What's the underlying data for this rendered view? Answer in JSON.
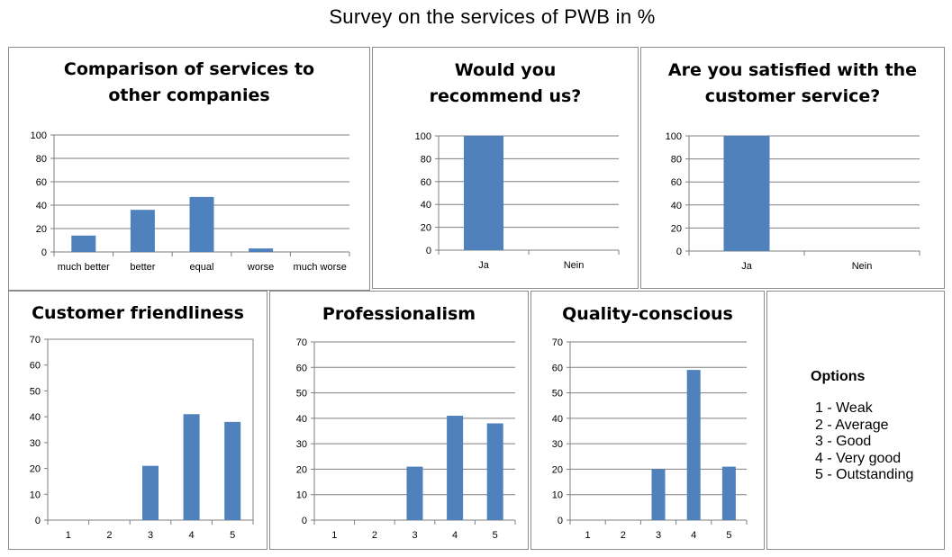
{
  "title": "Survey on the services of PWB in %",
  "chart_data": [
    {
      "type": "bar",
      "title": "Comparison of services to other companies",
      "categories": [
        "much better",
        "better",
        "equal",
        "worse",
        "much worse"
      ],
      "values": [
        14,
        36,
        47,
        3,
        0
      ],
      "ylim": [
        0,
        100
      ],
      "yticks": [
        0,
        20,
        40,
        60,
        80,
        100
      ],
      "grid": true,
      "color": "#4f81bd"
    },
    {
      "type": "bar",
      "title": "Would you recommend us?",
      "categories": [
        "Ja",
        "Nein"
      ],
      "values": [
        100,
        0
      ],
      "ylim": [
        0,
        100
      ],
      "yticks": [
        0,
        20,
        40,
        60,
        80,
        100
      ],
      "grid": true,
      "color": "#4f81bd"
    },
    {
      "type": "bar",
      "title": "Are you satisfied with the customer service?",
      "categories": [
        "Ja",
        "Nein"
      ],
      "values": [
        100,
        0
      ],
      "ylim": [
        0,
        100
      ],
      "yticks": [
        0,
        20,
        40,
        60,
        80,
        100
      ],
      "grid": true,
      "color": "#4f81bd"
    },
    {
      "type": "bar",
      "title": "Customer friendliness",
      "categories": [
        "1",
        "2",
        "3",
        "4",
        "5"
      ],
      "values": [
        0,
        0,
        21,
        41,
        38
      ],
      "ylim": [
        0,
        70
      ],
      "yticks": [
        0,
        10,
        20,
        30,
        40,
        50,
        60,
        70
      ],
      "grid": false,
      "color": "#4f81bd"
    },
    {
      "type": "bar",
      "title": "Professionalism",
      "categories": [
        "1",
        "2",
        "3",
        "4",
        "5"
      ],
      "values": [
        0,
        0,
        21,
        41,
        38
      ],
      "ylim": [
        0,
        70
      ],
      "yticks": [
        0,
        10,
        20,
        30,
        40,
        50,
        60,
        70
      ],
      "grid": true,
      "color": "#4f81bd"
    },
    {
      "type": "bar",
      "title": "Quality-conscious",
      "categories": [
        "1",
        "2",
        "3",
        "4",
        "5"
      ],
      "values": [
        0,
        0,
        20,
        59,
        21
      ],
      "ylim": [
        0,
        70
      ],
      "yticks": [
        0,
        10,
        20,
        30,
        40,
        50,
        60,
        70
      ],
      "grid": true,
      "color": "#4f81bd"
    }
  ],
  "legend": {
    "title": "Options",
    "items": [
      "1 - Weak",
      "2 - Average",
      "3 - Good",
      "4 - Very good",
      "5 - Outstanding"
    ]
  }
}
